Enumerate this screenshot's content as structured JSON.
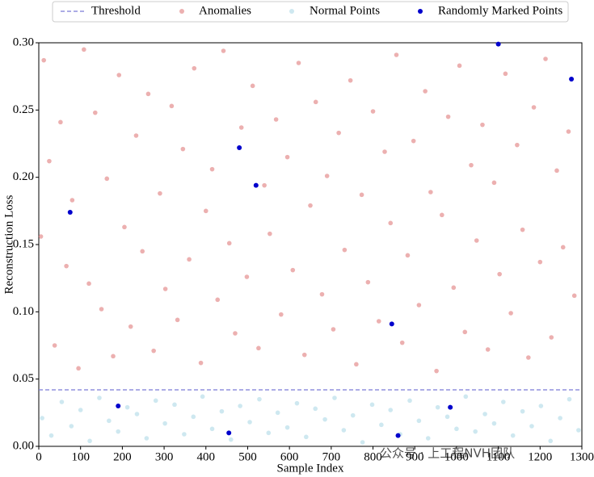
{
  "chart_data": {
    "type": "scatter",
    "x_label": "Sample Index",
    "y_label": "Reconstruction Loss",
    "xlim": [
      0,
      1300
    ],
    "ylim": [
      0,
      0.3
    ],
    "xticks": [
      0,
      100,
      200,
      300,
      400,
      500,
      600,
      700,
      800,
      900,
      1000,
      1100,
      1200,
      1300
    ],
    "yticks": [
      {
        "value": 0,
        "label": "0.00"
      },
      {
        "value": 0.05,
        "label": "0.05"
      },
      {
        "value": 0.1,
        "label": "0.10"
      },
      {
        "value": 0.15,
        "label": "0.15"
      },
      {
        "value": 0.2,
        "label": "0.20"
      },
      {
        "value": 0.25,
        "label": "0.25"
      },
      {
        "value": 0.3,
        "label": "0.30"
      }
    ],
    "threshold": {
      "name": "Threshold",
      "value": 0.042,
      "color": "#7b7bd6"
    },
    "legend": "top",
    "watermark": "公众号 · 上工程NVH团队",
    "series": [
      {
        "name": "Anomalies",
        "color": "#e07b7b",
        "x": [
          5,
          12,
          25,
          38,
          52,
          66,
          80,
          95,
          108,
          120,
          135,
          150,
          163,
          178,
          192,
          205,
          220,
          233,
          248,
          262,
          275,
          290,
          303,
          318,
          332,
          345,
          360,
          372,
          388,
          400,
          415,
          428,
          442,
          456,
          470,
          485,
          498,
          512,
          526,
          540,
          553,
          568,
          580,
          595,
          608,
          622,
          636,
          650,
          663,
          678,
          690,
          705,
          718,
          732,
          746,
          760,
          773,
          788,
          800,
          814,
          828,
          842,
          856,
          870,
          883,
          897,
          910,
          925,
          938,
          952,
          965,
          980,
          993,
          1007,
          1020,
          1035,
          1048,
          1062,
          1075,
          1090,
          1103,
          1117,
          1130,
          1145,
          1158,
          1172,
          1185,
          1200,
          1213,
          1227,
          1240,
          1255,
          1268,
          1282
        ],
        "values": [
          0.156,
          0.287,
          0.212,
          0.075,
          0.241,
          0.134,
          0.183,
          0.058,
          0.295,
          0.121,
          0.248,
          0.102,
          0.199,
          0.067,
          0.276,
          0.163,
          0.089,
          0.231,
          0.145,
          0.262,
          0.071,
          0.188,
          0.117,
          0.253,
          0.094,
          0.221,
          0.139,
          0.281,
          0.062,
          0.175,
          0.206,
          0.109,
          0.294,
          0.151,
          0.084,
          0.237,
          0.126,
          0.268,
          0.073,
          0.194,
          0.158,
          0.243,
          0.098,
          0.215,
          0.131,
          0.285,
          0.068,
          0.179,
          0.256,
          0.113,
          0.201,
          0.087,
          0.233,
          0.146,
          0.272,
          0.061,
          0.187,
          0.122,
          0.249,
          0.093,
          0.219,
          0.166,
          0.291,
          0.077,
          0.142,
          0.227,
          0.105,
          0.264,
          0.189,
          0.056,
          0.172,
          0.245,
          0.118,
          0.283,
          0.085,
          0.209,
          0.153,
          0.239,
          0.072,
          0.196,
          0.128,
          0.277,
          0.099,
          0.224,
          0.161,
          0.066,
          0.252,
          0.137,
          0.288,
          0.081,
          0.205,
          0.148,
          0.234,
          0.112
        ]
      },
      {
        "name": "Normal Points",
        "color": "#add8e6",
        "x": [
          8,
          30,
          55,
          78,
          100,
          122,
          145,
          168,
          190,
          212,
          235,
          258,
          280,
          302,
          325,
          348,
          370,
          392,
          415,
          438,
          460,
          482,
          505,
          528,
          550,
          572,
          595,
          618,
          640,
          662,
          685,
          708,
          730,
          752,
          775,
          798,
          820,
          842,
          865,
          888,
          910,
          932,
          955,
          978,
          1000,
          1022,
          1045,
          1068,
          1090,
          1112,
          1135,
          1158,
          1180,
          1202,
          1225,
          1248,
          1270,
          1292
        ],
        "values": [
          0.021,
          0.008,
          0.033,
          0.015,
          0.027,
          0.004,
          0.036,
          0.019,
          0.011,
          0.029,
          0.024,
          0.006,
          0.034,
          0.017,
          0.031,
          0.009,
          0.022,
          0.037,
          0.013,
          0.026,
          0.005,
          0.03,
          0.018,
          0.035,
          0.01,
          0.025,
          0.014,
          0.032,
          0.007,
          0.028,
          0.02,
          0.036,
          0.012,
          0.023,
          0.003,
          0.031,
          0.016,
          0.027,
          0.009,
          0.034,
          0.019,
          0.006,
          0.029,
          0.022,
          0.013,
          0.037,
          0.011,
          0.024,
          0.017,
          0.033,
          0.008,
          0.026,
          0.015,
          0.03,
          0.004,
          0.021,
          0.035,
          0.012
        ]
      },
      {
        "name": "Randomly Marked Points",
        "color": "#0000cc",
        "x": [
          75,
          190,
          455,
          480,
          520,
          845,
          860,
          985,
          1100,
          1275
        ],
        "values": [
          0.174,
          0.03,
          0.01,
          0.222,
          0.194,
          0.091,
          0.008,
          0.029,
          0.299,
          0.273
        ]
      }
    ]
  }
}
